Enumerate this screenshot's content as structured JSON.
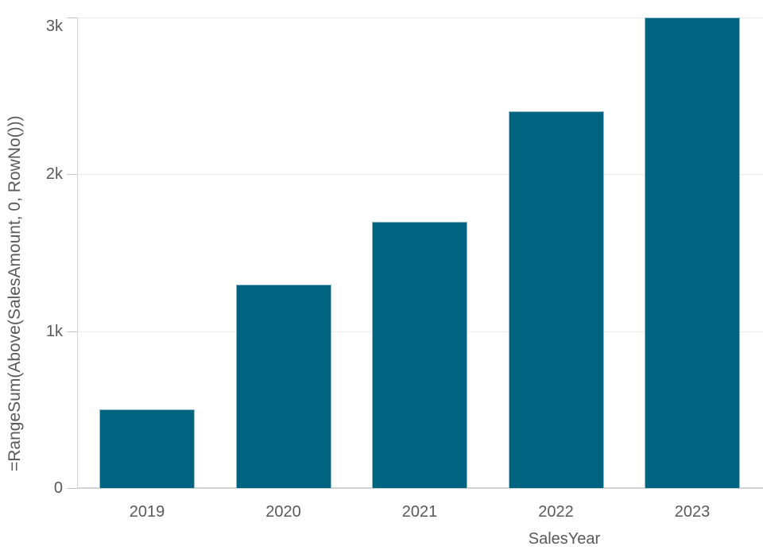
{
  "chart_data": {
    "type": "bar",
    "categories": [
      "2019",
      "2020",
      "2021",
      "2022",
      "2023"
    ],
    "values": [
      500,
      1300,
      1700,
      2400,
      3000
    ],
    "xlabel": "SalesYear",
    "ylabel": "=RangeSum(Above(SalesAmount, 0, RowNo()))",
    "ylim": [
      0,
      3000
    ],
    "yticks": [
      {
        "value": 0,
        "label": "0"
      },
      {
        "value": 1000,
        "label": "1k"
      },
      {
        "value": 2000,
        "label": "2k"
      },
      {
        "value": 3000,
        "label": "3k"
      }
    ],
    "grid": "horizontal-only",
    "legend": "none"
  },
  "colors": {
    "bar_fill": "#006380",
    "bar_border": "#8fbccb",
    "gridline": "#ebebeb",
    "axis_line": "#d2d2d2",
    "tick_mark": "#c6c6c6",
    "text": "#595959",
    "background": "#ffffff"
  }
}
